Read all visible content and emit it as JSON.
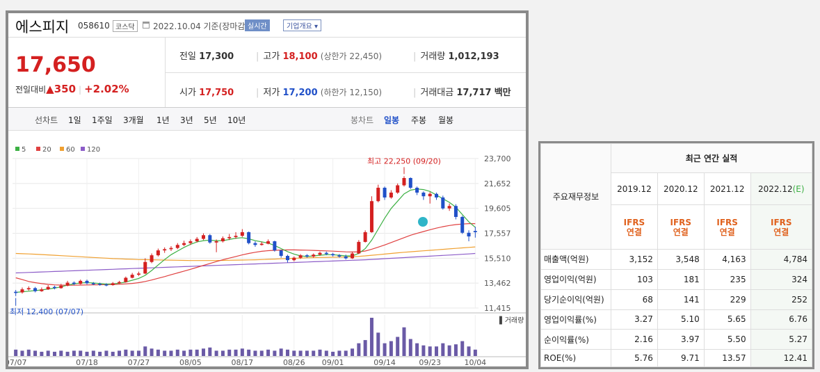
{
  "stock": {
    "name": "에스피지",
    "code": "058610",
    "market": "코스닥",
    "date_text": "2022.10.04 기준(장마감)",
    "realtime": "실시간",
    "overview": "기업개요",
    "price": "17,650",
    "change_label": "전일대비",
    "change_amount": "350",
    "change_pct": "+2.02%",
    "prev_label": "전일",
    "prev": "17,300",
    "high_label": "고가",
    "high": "18,100",
    "upper_limit": "(상한가 22,450)",
    "volume_label": "거래량",
    "volume": "1,012,193",
    "open_label": "시가",
    "open": "17,750",
    "low_label": "저가",
    "low": "17,200",
    "lower_limit": "(하한가 12,150)",
    "amount_label": "거래대금",
    "amount": "17,717",
    "amount_unit": "백만"
  },
  "tabs": {
    "line": "선차트",
    "d1": "1일",
    "w1": "1주일",
    "m3": "3개월",
    "y1": "1년",
    "y3": "3년",
    "y5": "5년",
    "y10": "10년",
    "candle": "봉차트",
    "daily": "일봉",
    "weekly": "주봉",
    "monthly": "월봉"
  },
  "colors": {
    "up": "#d42020",
    "down": "#2050c8",
    "ma5": "#3cb043",
    "ma20": "#e04040",
    "ma60": "#f0a030",
    "ma120": "#8c5cc8"
  },
  "chart_data": {
    "type": "candlestick",
    "legend": [
      "5",
      "20",
      "60",
      "120"
    ],
    "y_ticks": [
      "23,700",
      "21,652",
      "19,605",
      "17,557",
      "15,510",
      "13,462",
      "11,415"
    ],
    "ylim": [
      11415,
      23700
    ],
    "x_ticks": [
      "07/07",
      "07/18",
      "07/27",
      "08/05",
      "08/17",
      "08/26",
      "09/01",
      "09/14",
      "09/23",
      "10/04"
    ],
    "max_label": "최고 22,250 (09/20)",
    "min_label": "최저 12,400 (07/07)",
    "volume_label": "거래량",
    "candles": [
      {
        "o": 12750,
        "c": 12650,
        "h": 12900,
        "l": 12400
      },
      {
        "o": 12700,
        "c": 12950,
        "h": 13100,
        "l": 12600
      },
      {
        "o": 12950,
        "c": 13050,
        "h": 13200,
        "l": 12850
      },
      {
        "o": 13050,
        "c": 12800,
        "h": 13150,
        "l": 12700
      },
      {
        "o": 12800,
        "c": 12950,
        "h": 13100,
        "l": 12750
      },
      {
        "o": 12950,
        "c": 13150,
        "h": 13300,
        "l": 12900
      },
      {
        "o": 13150,
        "c": 13050,
        "h": 13250,
        "l": 12950
      },
      {
        "o": 13050,
        "c": 13250,
        "h": 13400,
        "l": 13000
      },
      {
        "o": 13250,
        "c": 13500,
        "h": 13650,
        "l": 13200
      },
      {
        "o": 13500,
        "c": 13400,
        "h": 13600,
        "l": 13300
      },
      {
        "o": 13400,
        "c": 13650,
        "h": 13750,
        "l": 13350
      },
      {
        "o": 13650,
        "c": 13450,
        "h": 13750,
        "l": 13350
      },
      {
        "o": 13450,
        "c": 13400,
        "h": 13550,
        "l": 13300
      },
      {
        "o": 13400,
        "c": 13350,
        "h": 13500,
        "l": 13250
      },
      {
        "o": 13350,
        "c": 13300,
        "h": 13450,
        "l": 13200
      },
      {
        "o": 13300,
        "c": 13450,
        "h": 13550,
        "l": 13250
      },
      {
        "o": 13450,
        "c": 13550,
        "h": 13650,
        "l": 13400
      },
      {
        "o": 13550,
        "c": 13900,
        "h": 14000,
        "l": 13500
      },
      {
        "o": 13900,
        "c": 14150,
        "h": 14300,
        "l": 13850
      },
      {
        "o": 14150,
        "c": 14250,
        "h": 14400,
        "l": 14050
      },
      {
        "o": 14250,
        "c": 15200,
        "h": 15500,
        "l": 14200
      },
      {
        "o": 15200,
        "c": 15750,
        "h": 15900,
        "l": 15100
      },
      {
        "o": 15750,
        "c": 16150,
        "h": 16300,
        "l": 15650
      },
      {
        "o": 16150,
        "c": 16250,
        "h": 16400,
        "l": 15950
      },
      {
        "o": 16250,
        "c": 16350,
        "h": 16500,
        "l": 16100
      },
      {
        "o": 16350,
        "c": 16600,
        "h": 16750,
        "l": 16250
      },
      {
        "o": 16600,
        "c": 16750,
        "h": 16950,
        "l": 16500
      },
      {
        "o": 16750,
        "c": 16900,
        "h": 17050,
        "l": 16600
      },
      {
        "o": 16900,
        "c": 17100,
        "h": 17250,
        "l": 16800
      },
      {
        "o": 17100,
        "c": 17400,
        "h": 17550,
        "l": 17000
      },
      {
        "o": 17400,
        "c": 16800,
        "h": 17500,
        "l": 16700
      },
      {
        "o": 16800,
        "c": 16900,
        "h": 17050,
        "l": 16000
      },
      {
        "o": 16900,
        "c": 17150,
        "h": 17300,
        "l": 16800
      },
      {
        "o": 17150,
        "c": 17250,
        "h": 17500,
        "l": 17000
      },
      {
        "o": 17250,
        "c": 17350,
        "h": 17650,
        "l": 17100
      },
      {
        "o": 17350,
        "c": 17650,
        "h": 17900,
        "l": 17250
      },
      {
        "o": 17650,
        "c": 16750,
        "h": 17700,
        "l": 16650
      },
      {
        "o": 16750,
        "c": 16600,
        "h": 16900,
        "l": 16450
      },
      {
        "o": 16600,
        "c": 16700,
        "h": 16850,
        "l": 16550
      },
      {
        "o": 16700,
        "c": 16900,
        "h": 17050,
        "l": 16650
      },
      {
        "o": 16900,
        "c": 16150,
        "h": 16950,
        "l": 16050
      },
      {
        "o": 16150,
        "c": 15700,
        "h": 16200,
        "l": 15550
      },
      {
        "o": 15700,
        "c": 15350,
        "h": 15800,
        "l": 15150
      },
      {
        "o": 15350,
        "c": 15550,
        "h": 15650,
        "l": 15250
      },
      {
        "o": 15550,
        "c": 15750,
        "h": 15850,
        "l": 15450
      },
      {
        "o": 15750,
        "c": 15650,
        "h": 15850,
        "l": 15550
      },
      {
        "o": 15650,
        "c": 15800,
        "h": 15900,
        "l": 15550
      },
      {
        "o": 15800,
        "c": 15950,
        "h": 16050,
        "l": 15700
      },
      {
        "o": 15950,
        "c": 15850,
        "h": 16050,
        "l": 15750
      },
      {
        "o": 15850,
        "c": 15750,
        "h": 15950,
        "l": 15650
      },
      {
        "o": 15750,
        "c": 15650,
        "h": 15850,
        "l": 15550
      },
      {
        "o": 15650,
        "c": 15500,
        "h": 15800,
        "l": 15400
      },
      {
        "o": 15500,
        "c": 15900,
        "h": 16050,
        "l": 15450
      },
      {
        "o": 15900,
        "c": 16850,
        "h": 17000,
        "l": 15850
      },
      {
        "o": 16850,
        "c": 17650,
        "h": 17800,
        "l": 16800
      },
      {
        "o": 17650,
        "c": 20200,
        "h": 20600,
        "l": 17600
      },
      {
        "o": 20200,
        "c": 21300,
        "h": 21550,
        "l": 20100
      },
      {
        "o": 21300,
        "c": 20500,
        "h": 21400,
        "l": 20300
      },
      {
        "o": 20500,
        "c": 20900,
        "h": 21100,
        "l": 20400
      },
      {
        "o": 20900,
        "c": 21500,
        "h": 21650,
        "l": 20800
      },
      {
        "o": 21500,
        "c": 22100,
        "h": 22250,
        "l": 21400
      },
      {
        "o": 22100,
        "c": 21300,
        "h": 22150,
        "l": 21200
      },
      {
        "o": 21300,
        "c": 20900,
        "h": 21400,
        "l": 20700
      },
      {
        "o": 20900,
        "c": 20600,
        "h": 21000,
        "l": 20300
      },
      {
        "o": 20600,
        "c": 20800,
        "h": 20950,
        "l": 20000
      },
      {
        "o": 20800,
        "c": 20500,
        "h": 20900,
        "l": 20300
      },
      {
        "o": 20500,
        "c": 19600,
        "h": 20650,
        "l": 19500
      },
      {
        "o": 19600,
        "c": 19800,
        "h": 20000,
        "l": 19400
      },
      {
        "o": 19800,
        "c": 18900,
        "h": 19950,
        "l": 18700
      },
      {
        "o": 18900,
        "c": 17600,
        "h": 19000,
        "l": 17500
      },
      {
        "o": 17600,
        "c": 17300,
        "h": 17800,
        "l": 16900
      },
      {
        "o": 17750,
        "c": 17650,
        "h": 18100,
        "l": 17200
      }
    ],
    "volumes": [
      6,
      5,
      6,
      5,
      4,
      5,
      4,
      5,
      4,
      5,
      5,
      4,
      5,
      4,
      5,
      4,
      5,
      6,
      5,
      5,
      9,
      7,
      6,
      5,
      5,
      6,
      5,
      6,
      6,
      7,
      8,
      5,
      5,
      6,
      6,
      7,
      6,
      5,
      5,
      6,
      5,
      7,
      6,
      5,
      5,
      5,
      5,
      6,
      5,
      4,
      5,
      5,
      7,
      12,
      15,
      36,
      22,
      12,
      14,
      18,
      27,
      16,
      12,
      10,
      9,
      9,
      12,
      10,
      11,
      14,
      9,
      6
    ],
    "ma5": [
      12700,
      12750,
      12800,
      12850,
      12900,
      12980,
      13050,
      13150,
      13300,
      13400,
      13480,
      13500,
      13470,
      13420,
      13380,
      13400,
      13450,
      13550,
      13700,
      13850,
      14100,
      14500,
      14950,
      15400,
      15800,
      16100,
      16400,
      16650,
      16850,
      16950,
      17000,
      16950,
      16950,
      17050,
      17150,
      17200,
      17100,
      16950,
      16850,
      16750,
      16550,
      16300,
      16050,
      15850,
      15700,
      15650,
      15700,
      15750,
      15800,
      15800,
      15750,
      15700,
      15700,
      15900,
      16300,
      17000,
      17900,
      18800,
      19600,
      20200,
      20800,
      21100,
      21200,
      21150,
      21000,
      20700,
      20400,
      20100,
      19700,
      19100,
      18500,
      18050
    ],
    "ma20": [
      13900,
      13750,
      13600,
      13500,
      13420,
      13360,
      13320,
      13300,
      13290,
      13290,
      13300,
      13310,
      13320,
      13330,
      13340,
      13350,
      13370,
      13400,
      13440,
      13500,
      13600,
      13720,
      13860,
      14000,
      14150,
      14300,
      14450,
      14600,
      14760,
      14920,
      15080,
      15230,
      15380,
      15520,
      15650,
      15780,
      15900,
      16000,
      16080,
      16130,
      16160,
      16180,
      16190,
      16190,
      16180,
      16170,
      16150,
      16130,
      16110,
      16090,
      16060,
      16030,
      16020,
      16040,
      16100,
      16250,
      16420,
      16600,
      16800,
      17000,
      17200,
      17400,
      17550,
      17700,
      17850,
      17980,
      18100,
      18200,
      18270,
      18320,
      18350,
      18350
    ],
    "ma60": [
      15900,
      15880,
      15860,
      15840,
      15810,
      15780,
      15750,
      15720,
      15690,
      15660,
      15630,
      15600,
      15570,
      15540,
      15510,
      15480,
      15460,
      15440,
      15420,
      15400,
      15390,
      15380,
      15370,
      15360,
      15350,
      15340,
      15330,
      15320,
      15320,
      15320,
      15320,
      15320,
      15330,
      15340,
      15350,
      15360,
      15370,
      15380,
      15400,
      15420,
      15440,
      15460,
      15480,
      15500,
      15520,
      15540,
      15560,
      15570,
      15580,
      15590,
      15600,
      15610,
      15630,
      15660,
      15700,
      15750,
      15800,
      15850,
      15900,
      15950,
      16000,
      16040,
      16080,
      16120,
      16160,
      16200,
      16240,
      16280,
      16320,
      16360,
      16400,
      16440
    ],
    "ma120": [
      14300,
      14320,
      14340,
      14360,
      14380,
      14400,
      14420,
      14440,
      14460,
      14480,
      14500,
      14520,
      14540,
      14560,
      14580,
      14600,
      14620,
      14640,
      14660,
      14680,
      14700,
      14720,
      14740,
      14760,
      14780,
      14800,
      14820,
      14840,
      14860,
      14880,
      14900,
      14920,
      14940,
      14960,
      14980,
      15000,
      15020,
      15040,
      15060,
      15080,
      15100,
      15120,
      15140,
      15160,
      15180,
      15200,
      15220,
      15240,
      15260,
      15280,
      15300,
      15320,
      15340,
      15360,
      15380,
      15410,
      15440,
      15470,
      15500,
      15530,
      15560,
      15590,
      15620,
      15650,
      15680,
      15710,
      15740,
      15770,
      15800,
      15830,
      15860,
      15900
    ]
  },
  "financials": {
    "title": "최근 연간 실적",
    "row_header": "주요재무정보",
    "years": [
      "2019.12",
      "2020.12",
      "2021.12",
      "2022.12"
    ],
    "estimate_mark": "(E)",
    "basis_top": "IFRS",
    "basis_bottom": "연결",
    "rows": [
      {
        "label": "매출액(억원)",
        "values": [
          "3,152",
          "3,548",
          "4,163",
          "4,784"
        ]
      },
      {
        "label": "영업이익(억원)",
        "values": [
          "103",
          "181",
          "235",
          "324"
        ]
      },
      {
        "label": "당기순이익(억원)",
        "values": [
          "68",
          "141",
          "229",
          "252"
        ]
      },
      {
        "label": "영업이익률(%)",
        "values": [
          "3.27",
          "5.10",
          "5.65",
          "6.76"
        ]
      },
      {
        "label": "순이익률(%)",
        "values": [
          "2.16",
          "3.97",
          "5.50",
          "5.27"
        ]
      },
      {
        "label": "ROE(%)",
        "values": [
          "5.76",
          "9.71",
          "13.57",
          "12.41"
        ]
      }
    ]
  }
}
